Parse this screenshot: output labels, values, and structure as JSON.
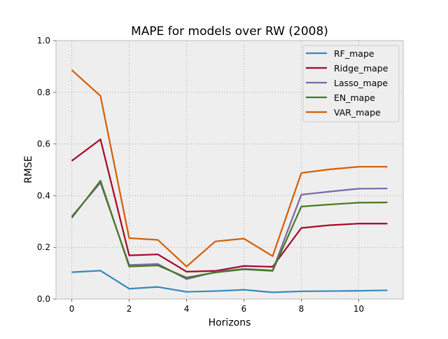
{
  "chart_data": {
    "type": "line",
    "title": "MAPE for models over RW (2008)",
    "xlabel": "Horizons",
    "ylabel": "RMSE",
    "xlim": [
      -0.55,
      11.55
    ],
    "ylim": [
      0.0,
      1.0
    ],
    "xticks": [
      0,
      2,
      4,
      6,
      8,
      10
    ],
    "yticks": [
      0.0,
      0.2,
      0.4,
      0.6,
      0.8,
      1.0
    ],
    "xtick_labels": [
      "0",
      "2",
      "4",
      "6",
      "8",
      "10"
    ],
    "ytick_labels": [
      "0.0",
      "0.2",
      "0.4",
      "0.6",
      "0.8",
      "1.0"
    ],
    "grid": true,
    "legend_position": "top-right",
    "x": [
      0,
      1,
      2,
      3,
      4,
      5,
      6,
      7,
      8,
      9,
      10,
      11
    ],
    "series": [
      {
        "name": "RF_mape",
        "color": "#348ABD",
        "values": [
          0.104,
          0.11,
          0.04,
          0.047,
          0.028,
          0.031,
          0.036,
          0.026,
          0.03,
          0.031,
          0.032,
          0.034
        ]
      },
      {
        "name": "Ridge_mape",
        "color": "#A60628",
        "values": [
          0.535,
          0.618,
          0.169,
          0.173,
          0.106,
          0.109,
          0.128,
          0.125,
          0.275,
          0.286,
          0.292,
          0.292
        ]
      },
      {
        "name": "Lasso_mape",
        "color": "#7A68A6",
        "values": [
          0.32,
          0.45,
          0.132,
          0.136,
          0.077,
          0.105,
          0.117,
          0.111,
          0.404,
          0.416,
          0.427,
          0.428
        ]
      },
      {
        "name": "EN_mape",
        "color": "#467821",
        "values": [
          0.314,
          0.458,
          0.126,
          0.13,
          0.083,
          0.103,
          0.115,
          0.109,
          0.358,
          0.366,
          0.373,
          0.374
        ]
      },
      {
        "name": "VAR_mape",
        "color": "#D55E00",
        "values": [
          0.886,
          0.786,
          0.236,
          0.229,
          0.126,
          0.223,
          0.234,
          0.166,
          0.488,
          0.502,
          0.512,
          0.512
        ]
      }
    ]
  }
}
